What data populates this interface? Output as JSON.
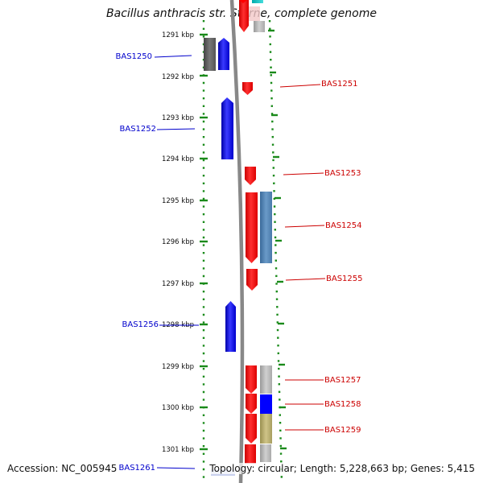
{
  "title": "Bacillus anthracis str. Sterne, complete genome",
  "footer": {
    "accession": "Accession: NC_005945",
    "summary": "Topology: circular; Length: 5,228,663 bp; Genes: 5,415"
  },
  "ruler_labels": [
    "1291 kbp",
    "1292 kbp",
    "1293 kbp",
    "1294 kbp",
    "1295 kbp",
    "1296 kbp",
    "1297 kbp",
    "1298 kbp",
    "1299 kbp",
    "1300 kbp",
    "1301 kbp"
  ],
  "colors": {
    "forward": "#0000ff",
    "reverse": "#ff0000",
    "forward_label": "#0000cc",
    "reverse_label": "#cc0000",
    "ruler": "#1a8a1a",
    "backbone": "#888888"
  },
  "genes": [
    {
      "label": "BAS1250",
      "strand": "forward"
    },
    {
      "label": "BAS1251",
      "strand": "reverse"
    },
    {
      "label": "BAS1252",
      "strand": "forward"
    },
    {
      "label": "BAS1253",
      "strand": "reverse"
    },
    {
      "label": "BAS1254",
      "strand": "reverse"
    },
    {
      "label": "BAS1255",
      "strand": "reverse"
    },
    {
      "label": "BAS1256",
      "strand": "forward"
    },
    {
      "label": "BAS1257",
      "strand": "reverse"
    },
    {
      "label": "BAS1258",
      "strand": "reverse"
    },
    {
      "label": "BAS1259",
      "strand": "reverse"
    },
    {
      "label": "BAS1261",
      "strand": "forward"
    }
  ]
}
